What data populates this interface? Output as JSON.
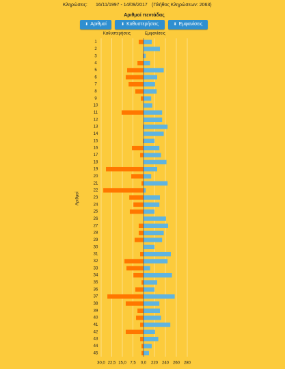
{
  "header": {
    "label": "Κληρώσεις:",
    "range": "16/11/1997 - 14/09/2017",
    "count": "(Πλήθος Κληρώσεων: 2063)"
  },
  "buttons": [
    "Αριθμοί",
    "Καθυστερήσεις",
    "Εμφανίσεις"
  ],
  "chart_data": {
    "type": "butterfly",
    "title": "Αριθμοί πεντάδας",
    "y_label": "Αριθμοί",
    "categories": [
      "1",
      "2",
      "3",
      "4",
      "5",
      "6",
      "7",
      "8",
      "9",
      "10",
      "11",
      "12",
      "13",
      "14",
      "15",
      "16",
      "17",
      "18",
      "19",
      "20",
      "21",
      "22",
      "23",
      "24",
      "25",
      "26",
      "27",
      "28",
      "29",
      "30",
      "31",
      "32",
      "33",
      "34",
      "35",
      "36",
      "37",
      "38",
      "39",
      "40",
      "41",
      "42",
      "43",
      "44",
      "45"
    ],
    "series": [
      {
        "name": "Καθυστερήσεις",
        "color": "#ff7700",
        "axis": "x",
        "values": [
          3.4,
          0,
          0.5,
          4.3,
          11.6,
          12.6,
          10.6,
          5.8,
          1.9,
          0,
          15.5,
          0,
          0.5,
          0,
          0.5,
          8.2,
          2.4,
          0,
          26.6,
          8.7,
          1.4,
          28.5,
          10.1,
          7.2,
          9.7,
          0,
          3.4,
          3.4,
          6.3,
          0,
          2.4,
          13.5,
          12.1,
          7.2,
          1.4,
          5.8,
          25.6,
          12.6,
          4.3,
          5.3,
          2.4,
          12.6,
          2.4,
          1.4,
          1.4
        ]
      },
      {
        "name": "Εμφανίσεις",
        "color": "#5fb4e0",
        "axis": "x2",
        "values": [
          215,
          230,
          204,
          212,
          237,
          225,
          221,
          224,
          214,
          216,
          234,
          234,
          244,
          237,
          220,
          229,
          232,
          242,
          225,
          214,
          244,
          204,
          230,
          229,
          220,
          241,
          245,
          237,
          234,
          220,
          250,
          244,
          212,
          252,
          225,
          220,
          257,
          229,
          230,
          232,
          249,
          221,
          227,
          215,
          210
        ]
      }
    ],
    "xlim": [
      30,
      0
    ],
    "xticks": [
      {
        "value": 30,
        "label": "30,0"
      },
      {
        "value": 22.5,
        "label": "22,5"
      },
      {
        "value": 15,
        "label": "15,0"
      },
      {
        "value": 7.5,
        "label": "7,5"
      },
      {
        "value": 0,
        "label": "0,0"
      }
    ],
    "x2lim": [
      200,
      280
    ],
    "x2ticks": [
      220,
      240,
      260,
      280
    ],
    "grid": true
  }
}
